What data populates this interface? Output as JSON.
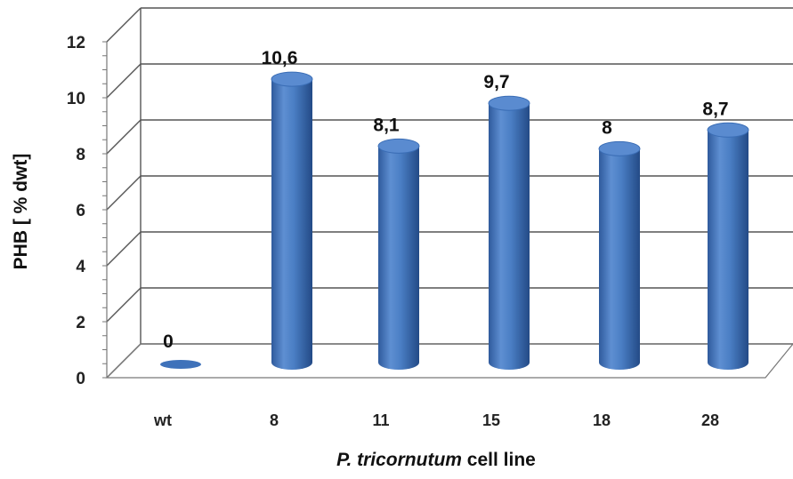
{
  "chart_data": {
    "type": "bar",
    "style": "3d-cylinder",
    "categories": [
      "wt",
      "8",
      "11",
      "15",
      "18",
      "28"
    ],
    "values": [
      0,
      10.6,
      8.1,
      9.7,
      8,
      8.7
    ],
    "data_labels": [
      "0",
      "10,6",
      "8,1",
      "9,7",
      "8",
      "8,7"
    ],
    "ylabel": "PHB [ % dwt]",
    "xlabel_italic": "P. tricornutum",
    "xlabel_rest": " cell line",
    "ylim": [
      0,
      12
    ],
    "yticks": [
      "0",
      "2",
      "4",
      "6",
      "8",
      "10",
      "12"
    ],
    "grid": true,
    "legend": "none",
    "colors": {
      "bar_light": "#6f9ad6",
      "bar_mid": "#4a7ec4",
      "bar_dark": "#2c5596",
      "top": "#5a8bd0",
      "grid": "#555555"
    }
  }
}
